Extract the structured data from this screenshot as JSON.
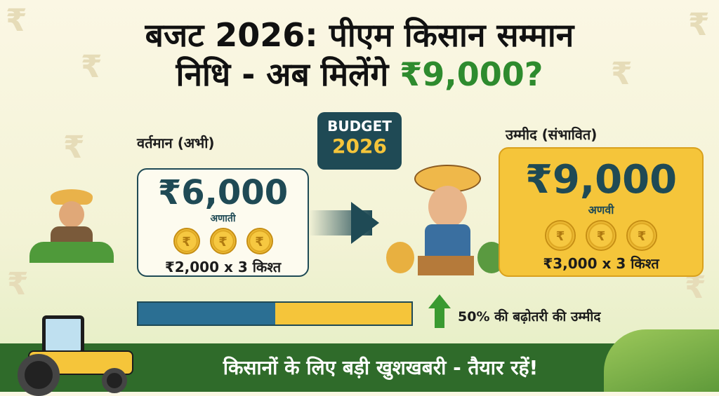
{
  "title": {
    "line1": "बजट 2026: पीएम किसान सम्मान",
    "line2_prefix": "निधि - अब मिलेंगे ",
    "line2_highlight": "₹9,000?"
  },
  "badge": {
    "line1": "BUDGET",
    "line2": "2026"
  },
  "current": {
    "label": "वर्तमान (अभी)",
    "amount": "₹6,000",
    "sub": "अणाती",
    "coin_symbol": "₹",
    "installment": "₹2,000 x 3 किश्त"
  },
  "expected": {
    "label": "उम्मीद (संभावित)",
    "amount": "₹9,000",
    "sub": "अणवी",
    "coin_symbol": "₹",
    "installment": "₹3,000 x 3 किश्त"
  },
  "increase": {
    "text": "50% की बढ़ोतरी की उम्मीद",
    "bar_fraction_current": 0.5
  },
  "footer": {
    "text": "किसानों के लिए बड़ी खुशखबरी - तैयार रहें!"
  },
  "colors": {
    "green": "#2e8b2e",
    "blue": "#2b6f93",
    "yellow": "#f5c53a",
    "navy": "#1f4a55",
    "footer": "#2f6b2a"
  },
  "decor": {
    "rupee": "₹"
  }
}
